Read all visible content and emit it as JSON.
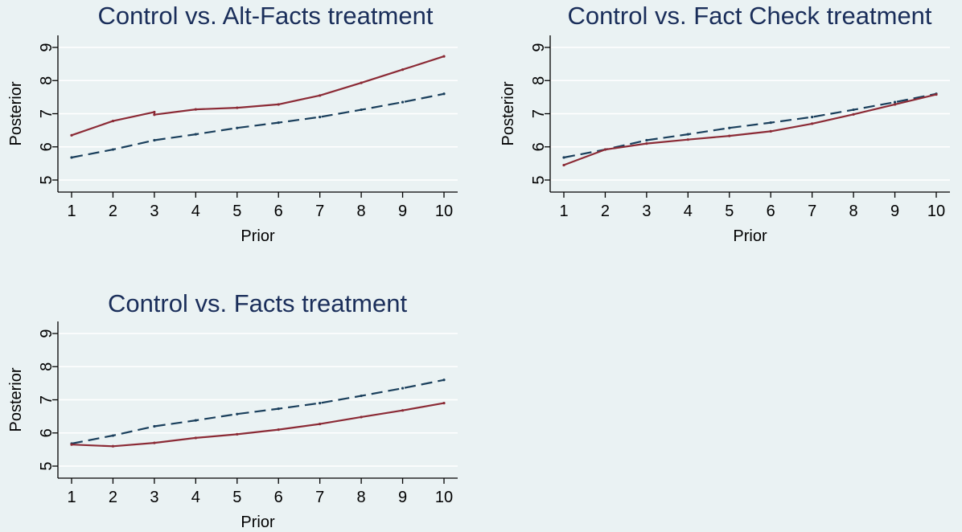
{
  "colors": {
    "background": "#eaf2f3",
    "title": "#1a2e5a",
    "control_line": "#1a3f5c",
    "treatment_line": "#8b2a35",
    "grid": "#ffffff"
  },
  "chart_data": [
    {
      "type": "line",
      "title": "Control vs. Alt-Facts treatment",
      "xlabel": "Prior",
      "ylabel": "Posterior",
      "xlim": [
        1,
        10
      ],
      "ylim": [
        5,
        9
      ],
      "xticks": [
        1,
        2,
        3,
        4,
        5,
        6,
        7,
        8,
        9,
        10
      ],
      "yticks": [
        5,
        6,
        7,
        8,
        9
      ],
      "grid": true,
      "series": [
        {
          "style": "solid",
          "color": "#8b2a35",
          "x": [
            1,
            2,
            3,
            3,
            4,
            5,
            6,
            7,
            8,
            9,
            10
          ],
          "y": [
            6.35,
            6.78,
            7.05,
            6.97,
            7.13,
            7.18,
            7.28,
            7.55,
            7.93,
            8.33,
            8.73
          ]
        },
        {
          "style": "dashed",
          "color": "#1a3f5c",
          "x": [
            1,
            2,
            3,
            4,
            5,
            6,
            7,
            8,
            9,
            10
          ],
          "y": [
            5.68,
            5.92,
            6.2,
            6.38,
            6.57,
            6.73,
            6.9,
            7.12,
            7.35,
            7.6
          ]
        }
      ]
    },
    {
      "type": "line",
      "title": "Control vs. Fact Check treatment",
      "xlabel": "Prior",
      "ylabel": "Posterior",
      "xlim": [
        1,
        10
      ],
      "ylim": [
        5,
        9
      ],
      "xticks": [
        1,
        2,
        3,
        4,
        5,
        6,
        7,
        8,
        9,
        10
      ],
      "yticks": [
        5,
        6,
        7,
        8,
        9
      ],
      "grid": true,
      "series": [
        {
          "style": "solid",
          "color": "#8b2a35",
          "x": [
            1,
            2,
            3,
            4,
            5,
            6,
            7,
            8,
            9,
            10
          ],
          "y": [
            5.45,
            5.92,
            6.1,
            6.22,
            6.33,
            6.47,
            6.7,
            6.98,
            7.28,
            7.58
          ]
        },
        {
          "style": "dashed",
          "color": "#1a3f5c",
          "x": [
            1,
            2,
            3,
            4,
            5,
            6,
            7,
            8,
            9,
            10
          ],
          "y": [
            5.68,
            5.92,
            6.2,
            6.38,
            6.57,
            6.73,
            6.9,
            7.12,
            7.35,
            7.6
          ]
        }
      ]
    },
    {
      "type": "line",
      "title": "Control vs. Facts treatment",
      "xlabel": "Prior",
      "ylabel": "Posterior",
      "xlim": [
        1,
        10
      ],
      "ylim": [
        5,
        9
      ],
      "xticks": [
        1,
        2,
        3,
        4,
        5,
        6,
        7,
        8,
        9,
        10
      ],
      "yticks": [
        5,
        6,
        7,
        8,
        9
      ],
      "grid": true,
      "series": [
        {
          "style": "solid",
          "color": "#8b2a35",
          "x": [
            1,
            2,
            3,
            4,
            5,
            6,
            7,
            8,
            9,
            10
          ],
          "y": [
            5.65,
            5.6,
            5.7,
            5.85,
            5.96,
            6.1,
            6.27,
            6.48,
            6.68,
            6.9
          ]
        },
        {
          "style": "dashed",
          "color": "#1a3f5c",
          "x": [
            1,
            2,
            3,
            4,
            5,
            6,
            7,
            8,
            9,
            10
          ],
          "y": [
            5.68,
            5.92,
            6.2,
            6.38,
            6.57,
            6.73,
            6.9,
            7.12,
            7.35,
            7.6
          ]
        }
      ]
    }
  ]
}
